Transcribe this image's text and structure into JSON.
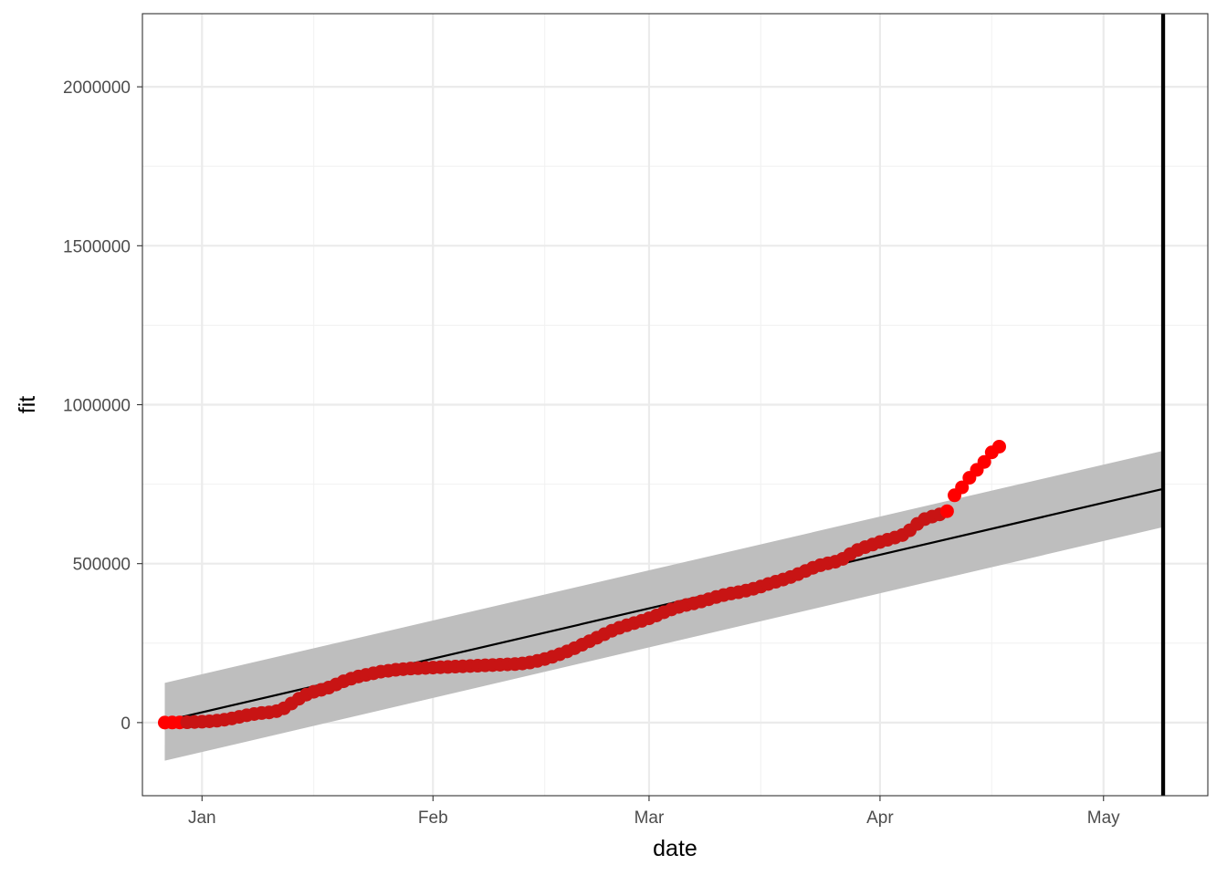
{
  "chart_data": {
    "type": "line",
    "title": "",
    "xlabel": "date",
    "ylabel": "fit",
    "x_axis": {
      "kind": "date",
      "range": [
        "2019-12-24",
        "2020-05-15"
      ],
      "ticks": [
        {
          "date": "2020-01-01",
          "label": "Jan"
        },
        {
          "date": "2020-02-01",
          "label": "Feb"
        },
        {
          "date": "2020-03-01",
          "label": "Mar"
        },
        {
          "date": "2020-04-01",
          "label": "Apr"
        },
        {
          "date": "2020-05-01",
          "label": "May"
        }
      ],
      "minor_ticks": [
        "2020-01-16",
        "2020-02-16",
        "2020-03-16",
        "2020-04-16"
      ]
    },
    "y_axis": {
      "range": [
        -230000,
        2230000
      ],
      "ticks": [
        {
          "value": 0,
          "label": "0"
        },
        {
          "value": 500000,
          "label": "500000"
        },
        {
          "value": 1000000,
          "label": "1000000"
        },
        {
          "value": 1500000,
          "label": "1500000"
        },
        {
          "value": 2000000,
          "label": "2000000"
        }
      ],
      "minor_ticks": [
        250000,
        750000,
        1250000,
        1750000
      ]
    },
    "grid": true,
    "fit_line": {
      "color": "#000000",
      "points": [
        {
          "x": "2019-12-27",
          "y": 5000
        },
        {
          "x": "2020-05-09",
          "y": 735000
        }
      ]
    },
    "confidence_band": {
      "color": "#bebebe",
      "points": [
        {
          "x": "2019-12-27",
          "lower": -120000,
          "upper": 125000
        },
        {
          "x": "2020-05-09",
          "lower": 615000,
          "upper": 855000
        }
      ]
    },
    "vertical_line": {
      "x": "2020-05-09",
      "color": "#000000"
    },
    "series": [
      {
        "kind": "points",
        "color_start": "#ff0000",
        "color_main": "#c81414",
        "color_end": "#ff0000",
        "points": [
          [
            "2019-12-27",
            0
          ],
          [
            "2019-12-28",
            200
          ],
          [
            "2019-12-29",
            500
          ],
          [
            "2019-12-30",
            1000
          ],
          [
            "2019-12-31",
            1800
          ],
          [
            "2020-01-01",
            2800
          ],
          [
            "2020-01-02",
            4000
          ],
          [
            "2020-01-03",
            6000
          ],
          [
            "2020-01-04",
            9000
          ],
          [
            "2020-01-05",
            13000
          ],
          [
            "2020-01-06",
            18000
          ],
          [
            "2020-01-07",
            23000
          ],
          [
            "2020-01-08",
            27000
          ],
          [
            "2020-01-09",
            30000
          ],
          [
            "2020-01-10",
            32000
          ],
          [
            "2020-01-11",
            36000
          ],
          [
            "2020-01-12",
            45000
          ],
          [
            "2020-01-13",
            60000
          ],
          [
            "2020-01-14",
            75000
          ],
          [
            "2020-01-15",
            88000
          ],
          [
            "2020-01-16",
            97000
          ],
          [
            "2020-01-17",
            103000
          ],
          [
            "2020-01-18",
            110000
          ],
          [
            "2020-01-19",
            120000
          ],
          [
            "2020-01-20",
            130000
          ],
          [
            "2020-01-21",
            138000
          ],
          [
            "2020-01-22",
            145000
          ],
          [
            "2020-01-23",
            150000
          ],
          [
            "2020-01-24",
            155000
          ],
          [
            "2020-01-25",
            160000
          ],
          [
            "2020-01-26",
            163000
          ],
          [
            "2020-01-27",
            166000
          ],
          [
            "2020-01-28",
            168000
          ],
          [
            "2020-01-29",
            170000
          ],
          [
            "2020-01-30",
            171000
          ],
          [
            "2020-01-31",
            172000
          ],
          [
            "2020-02-01",
            173000
          ],
          [
            "2020-02-02",
            174000
          ],
          [
            "2020-02-03",
            175000
          ],
          [
            "2020-02-04",
            176000
          ],
          [
            "2020-02-05",
            177000
          ],
          [
            "2020-02-06",
            178000
          ],
          [
            "2020-02-07",
            179000
          ],
          [
            "2020-02-08",
            180000
          ],
          [
            "2020-02-09",
            181000
          ],
          [
            "2020-02-10",
            182000
          ],
          [
            "2020-02-11",
            183000
          ],
          [
            "2020-02-12",
            184000
          ],
          [
            "2020-02-13",
            186000
          ],
          [
            "2020-02-14",
            189000
          ],
          [
            "2020-02-15",
            194000
          ],
          [
            "2020-02-16",
            200000
          ],
          [
            "2020-02-17",
            207000
          ],
          [
            "2020-02-18",
            215000
          ],
          [
            "2020-02-19",
            224000
          ],
          [
            "2020-02-20",
            234000
          ],
          [
            "2020-02-21",
            245000
          ],
          [
            "2020-02-22",
            256000
          ],
          [
            "2020-02-23",
            267000
          ],
          [
            "2020-02-24",
            278000
          ],
          [
            "2020-02-25",
            289000
          ],
          [
            "2020-02-26",
            298000
          ],
          [
            "2020-02-27",
            306000
          ],
          [
            "2020-02-28",
            313000
          ],
          [
            "2020-02-29",
            320000
          ],
          [
            "2020-03-01",
            328000
          ],
          [
            "2020-03-02",
            337000
          ],
          [
            "2020-03-03",
            347000
          ],
          [
            "2020-03-04",
            356000
          ],
          [
            "2020-03-05",
            364000
          ],
          [
            "2020-03-06",
            370000
          ],
          [
            "2020-03-07",
            375000
          ],
          [
            "2020-03-08",
            381000
          ],
          [
            "2020-03-09",
            388000
          ],
          [
            "2020-03-10",
            395000
          ],
          [
            "2020-03-11",
            401000
          ],
          [
            "2020-03-12",
            406000
          ],
          [
            "2020-03-13",
            410000
          ],
          [
            "2020-03-14",
            415000
          ],
          [
            "2020-03-15",
            421000
          ],
          [
            "2020-03-16",
            428000
          ],
          [
            "2020-03-17",
            436000
          ],
          [
            "2020-03-18",
            443000
          ],
          [
            "2020-03-19",
            450000
          ],
          [
            "2020-03-20",
            458000
          ],
          [
            "2020-03-21",
            467000
          ],
          [
            "2020-03-22",
            477000
          ],
          [
            "2020-03-23",
            487000
          ],
          [
            "2020-03-24",
            495000
          ],
          [
            "2020-03-25",
            501000
          ],
          [
            "2020-03-26",
            506000
          ],
          [
            "2020-03-27",
            515000
          ],
          [
            "2020-03-28",
            530000
          ],
          [
            "2020-03-29",
            543000
          ],
          [
            "2020-03-30",
            552000
          ],
          [
            "2020-03-31",
            560000
          ],
          [
            "2020-04-01",
            568000
          ],
          [
            "2020-04-02",
            575000
          ],
          [
            "2020-04-03",
            582000
          ],
          [
            "2020-04-04",
            590000
          ],
          [
            "2020-04-05",
            605000
          ],
          [
            "2020-04-06",
            625000
          ],
          [
            "2020-04-07",
            640000
          ],
          [
            "2020-04-08",
            648000
          ],
          [
            "2020-04-09",
            655000
          ],
          [
            "2020-04-10",
            665000
          ],
          [
            "2020-04-11",
            715000
          ],
          [
            "2020-04-12",
            740000
          ],
          [
            "2020-04-13",
            770000
          ],
          [
            "2020-04-14",
            795000
          ],
          [
            "2020-04-15",
            820000
          ],
          [
            "2020-04-16",
            850000
          ],
          [
            "2020-04-17",
            868000
          ]
        ]
      }
    ]
  }
}
